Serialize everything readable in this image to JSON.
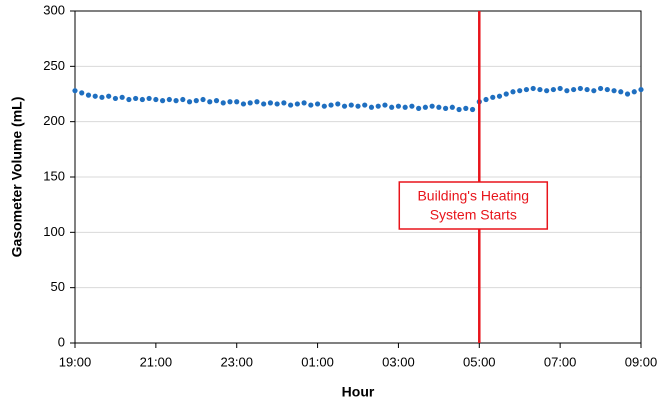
{
  "chart_data": {
    "type": "scatter",
    "x_label": "Hour",
    "y_label": "Gasometer Volume (mL)",
    "x": [
      "19:00",
      "19:10",
      "19:20",
      "19:30",
      "19:40",
      "19:50",
      "20:00",
      "20:10",
      "20:20",
      "20:30",
      "20:40",
      "20:50",
      "21:00",
      "21:10",
      "21:20",
      "21:30",
      "21:40",
      "21:50",
      "22:00",
      "22:10",
      "22:20",
      "22:30",
      "22:40",
      "22:50",
      "23:00",
      "23:10",
      "23:20",
      "23:30",
      "23:40",
      "23:50",
      "00:00",
      "00:10",
      "00:20",
      "00:30",
      "00:40",
      "00:50",
      "01:00",
      "01:10",
      "01:20",
      "01:30",
      "01:40",
      "01:50",
      "02:00",
      "02:10",
      "02:20",
      "02:30",
      "02:40",
      "02:50",
      "03:00",
      "03:10",
      "03:20",
      "03:30",
      "03:40",
      "03:50",
      "04:00",
      "04:10",
      "04:20",
      "04:30",
      "04:40",
      "04:50",
      "05:00",
      "05:10",
      "05:20",
      "05:30",
      "05:40",
      "05:50",
      "06:00",
      "06:10",
      "06:20",
      "06:30",
      "06:40",
      "06:50",
      "07:00",
      "07:10",
      "07:20",
      "07:30",
      "07:40",
      "07:50",
      "08:00",
      "08:10",
      "08:20",
      "08:30",
      "08:40",
      "08:50",
      "09:00"
    ],
    "values": [
      228,
      226,
      224,
      223,
      222,
      223,
      221,
      222,
      220,
      221,
      220,
      221,
      220,
      219,
      220,
      219,
      220,
      218,
      219,
      220,
      218,
      219,
      217,
      218,
      218,
      216,
      217,
      218,
      216,
      217,
      216,
      217,
      215,
      216,
      217,
      215,
      216,
      214,
      215,
      216,
      214,
      215,
      214,
      215,
      213,
      214,
      215,
      213,
      214,
      213,
      214,
      212,
      213,
      214,
      213,
      212,
      213,
      211,
      212,
      211,
      218,
      220,
      222,
      223,
      225,
      227,
      228,
      229,
      230,
      229,
      228,
      229,
      230,
      228,
      229,
      230,
      229,
      228,
      230,
      229,
      228,
      227,
      225,
      227,
      229
    ],
    "color": "#1f6fc0",
    "xlim": [
      "19:00",
      "09:00"
    ],
    "xticks": [
      "19:00",
      "21:00",
      "23:00",
      "01:00",
      "03:00",
      "05:00",
      "07:00",
      "09:00"
    ],
    "ylim": [
      0,
      300
    ],
    "yticks": [
      0,
      50,
      100,
      150,
      200,
      250,
      300
    ],
    "grid": true,
    "annotation": {
      "x": "05:00",
      "color": "#e8141b",
      "lines": [
        "Building's Heating",
        "System Starts"
      ]
    }
  }
}
